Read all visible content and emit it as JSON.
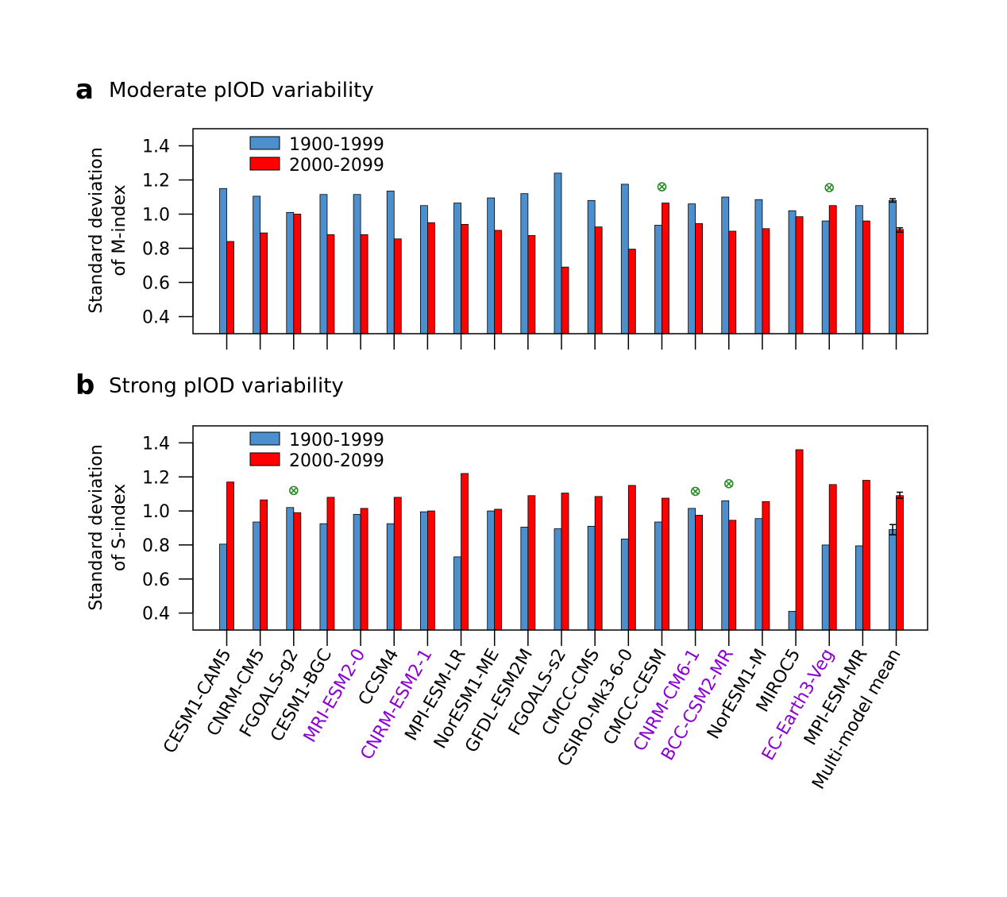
{
  "colors": {
    "blue": "#4d8fcc",
    "red": "#ff0000",
    "highlight": "#8a00d4",
    "marker": "#2a8a2a",
    "outline": "#000000"
  },
  "categories": [
    "CESM1-CAM5",
    "CNRM-CM5",
    "FGOALS-g2",
    "CESM1-BGC",
    "MRI-ESM2-0",
    "CCSM4",
    "CNRM-ESM2-1",
    "MPI-ESM-LR",
    "NorESM1-ME",
    "GFDL-ESM2M",
    "FGOALS-s2",
    "CMCC-CMS",
    "CSIRO-Mk3-6-0",
    "CMCC-CESM",
    "CNRM-CM6-1",
    "BCC-CSM2-MR",
    "NorESM1-M",
    "MIROC5",
    "EC-Earth3-Veg",
    "MPI-ESM-MR",
    "Multi-model mean"
  ],
  "highlighted_categories": [
    "MRI-ESM2-0",
    "CNRM-ESM2-1",
    "CNRM-CM6-1",
    "BCC-CSM2-MR",
    "EC-Earth3-Veg"
  ],
  "chart_data": [
    {
      "type": "bar",
      "panel_label": "a",
      "title": "Moderate pIOD variability",
      "ylabel_line1": "Standard deviation",
      "ylabel_line2": "of M-index",
      "ylim": [
        0.3,
        1.5
      ],
      "yticks": [
        "0.4",
        "0.6",
        "0.8",
        "1.0",
        "1.2",
        "1.4"
      ],
      "legend": [
        "1900-1999",
        "2000-2099"
      ],
      "legend_position": "top-left",
      "series": [
        {
          "name": "1900-1999",
          "values": [
            1.15,
            1.105,
            1.01,
            1.115,
            1.115,
            1.135,
            1.05,
            1.065,
            1.095,
            1.12,
            1.24,
            1.08,
            1.175,
            0.935,
            1.06,
            1.1,
            1.085,
            1.02,
            0.96,
            1.05,
            1.08
          ]
        },
        {
          "name": "2000-2099",
          "values": [
            0.84,
            0.89,
            1.0,
            0.88,
            0.88,
            0.855,
            0.95,
            0.94,
            0.905,
            0.875,
            0.69,
            0.925,
            0.795,
            1.065,
            0.945,
            0.9,
            0.915,
            0.985,
            1.05,
            0.96,
            0.91
          ]
        }
      ],
      "error_bars": {
        "category": "Multi-model mean",
        "series1": [
          1.07,
          1.09
        ],
        "series2": [
          0.895,
          0.92
        ]
      },
      "markers": [
        {
          "category": "CMCC-CESM",
          "y": 1.16
        },
        {
          "category": "EC-Earth3-Veg",
          "y": 1.155
        }
      ]
    },
    {
      "type": "bar",
      "panel_label": "b",
      "title": "Strong pIOD variability",
      "ylabel_line1": "Standard deviation",
      "ylabel_line2": "of S-index",
      "ylim": [
        0.3,
        1.5
      ],
      "yticks": [
        "0.4",
        "0.6",
        "0.8",
        "1.0",
        "1.2",
        "1.4"
      ],
      "legend": [
        "1900-1999",
        "2000-2099"
      ],
      "legend_position": "top-left",
      "series": [
        {
          "name": "1900-1999",
          "values": [
            0.805,
            0.935,
            1.02,
            0.925,
            0.98,
            0.925,
            0.995,
            0.73,
            1.0,
            0.905,
            0.895,
            0.91,
            0.835,
            0.935,
            1.015,
            1.06,
            0.955,
            0.41,
            0.8,
            0.795,
            0.89
          ]
        },
        {
          "name": "2000-2099",
          "values": [
            1.17,
            1.065,
            0.99,
            1.08,
            1.015,
            1.08,
            1.0,
            1.22,
            1.01,
            1.09,
            1.105,
            1.085,
            1.15,
            1.075,
            0.975,
            0.945,
            1.055,
            1.36,
            1.155,
            1.18,
            1.09
          ]
        }
      ],
      "error_bars": {
        "category": "Multi-model mean",
        "series1": [
          0.86,
          0.92
        ],
        "series2": [
          1.075,
          1.11
        ]
      },
      "markers": [
        {
          "category": "FGOALS-g2",
          "y": 1.12
        },
        {
          "category": "CNRM-CM6-1",
          "y": 1.115
        },
        {
          "category": "BCC-CSM2-MR",
          "y": 1.16
        }
      ]
    }
  ]
}
